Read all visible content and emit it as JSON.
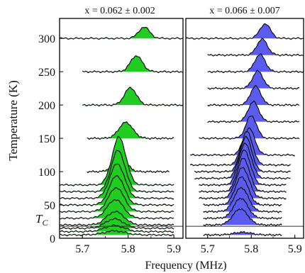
{
  "chart_data": [
    {
      "type": "area",
      "title": "x = 0.062 ± 0.002",
      "xlabel": "Frequency (MHz)",
      "ylabel": "Temperature (K)",
      "xlim": [
        5.65,
        5.92
      ],
      "ylim": [
        0,
        330
      ],
      "xticks": [
        "5.7",
        "5.8",
        "5.9"
      ],
      "yticks": [
        "0",
        "50",
        "100",
        "150",
        "200",
        "250",
        "300"
      ],
      "tc_label": "T",
      "tc_sub": "C",
      "tc_value": 18,
      "fill_color": "#22cc22",
      "traces": [
        {
          "temperature": 300,
          "xstart": 5.65,
          "xend": 5.92,
          "center": 5.835,
          "width": 0.012,
          "amplitude": 17
        },
        {
          "temperature": 250,
          "xstart": 5.7,
          "xend": 5.92,
          "center": 5.818,
          "width": 0.013,
          "amplitude": 24
        },
        {
          "temperature": 200,
          "xstart": 5.7,
          "xend": 5.92,
          "center": 5.805,
          "width": 0.013,
          "amplitude": 26
        },
        {
          "temperature": 150,
          "xstart": 5.71,
          "xend": 5.9,
          "center": 5.795,
          "width": 0.015,
          "amplitude": 24
        },
        {
          "temperature": 100,
          "xstart": 5.71,
          "xend": 5.89,
          "center": 5.782,
          "width": 0.014,
          "amplitude": 25
        },
        {
          "temperature": 80,
          "xstart": 5.65,
          "xend": 5.9,
          "center": 5.78,
          "width": 0.015,
          "amplitude": 72
        },
        {
          "temperature": 70,
          "xstart": 5.65,
          "xend": 5.9,
          "center": 5.778,
          "width": 0.015,
          "amplitude": 62
        },
        {
          "temperature": 60,
          "xstart": 5.65,
          "xend": 5.9,
          "center": 5.776,
          "width": 0.016,
          "amplitude": 52
        },
        {
          "temperature": 50,
          "xstart": 5.65,
          "xend": 5.9,
          "center": 5.775,
          "width": 0.016,
          "amplitude": 44
        },
        {
          "temperature": 40,
          "xstart": 5.65,
          "xend": 5.9,
          "center": 5.774,
          "width": 0.017,
          "amplitude": 36
        },
        {
          "temperature": 30,
          "xstart": 5.65,
          "xend": 5.9,
          "center": 5.772,
          "width": 0.018,
          "amplitude": 28
        },
        {
          "temperature": 20,
          "xstart": 5.65,
          "xend": 5.9,
          "center": 5.772,
          "width": 0.019,
          "amplitude": 20
        },
        {
          "temperature": 15,
          "xstart": 5.65,
          "xend": 5.9,
          "center": 5.77,
          "width": 0.02,
          "amplitude": 14
        },
        {
          "temperature": 10,
          "xstart": 5.65,
          "xend": 5.9,
          "center": 5.77,
          "width": 0.022,
          "amplitude": 9
        },
        {
          "temperature": 5,
          "xstart": 5.65,
          "xend": 5.9,
          "center": 5.77,
          "width": 0.024,
          "amplitude": 6
        }
      ]
    },
    {
      "type": "area",
      "title": "x = 0.066 ± 0.007",
      "xlabel": "Frequency (MHz)",
      "ylabel": "",
      "xlim": [
        5.65,
        5.92
      ],
      "ylim": [
        0,
        330
      ],
      "xticks": [
        "5.7",
        "5.8",
        "5.9"
      ],
      "yticks": [],
      "tc_value": 18,
      "fill_color": "#5b5bf0",
      "traces": [
        {
          "temperature": 300,
          "xstart": 5.65,
          "xend": 5.92,
          "center": 5.832,
          "width": 0.012,
          "amplitude": 22
        },
        {
          "temperature": 275,
          "xstart": 5.7,
          "xend": 5.92,
          "center": 5.825,
          "width": 0.012,
          "amplitude": 24
        },
        {
          "temperature": 250,
          "xstart": 5.7,
          "xend": 5.92,
          "center": 5.82,
          "width": 0.012,
          "amplitude": 26
        },
        {
          "temperature": 225,
          "xstart": 5.7,
          "xend": 5.91,
          "center": 5.815,
          "width": 0.012,
          "amplitude": 26
        },
        {
          "temperature": 200,
          "xstart": 5.7,
          "xend": 5.91,
          "center": 5.81,
          "width": 0.012,
          "amplitude": 28
        },
        {
          "temperature": 175,
          "xstart": 5.7,
          "xend": 5.91,
          "center": 5.805,
          "width": 0.012,
          "amplitude": 30
        },
        {
          "temperature": 150,
          "xstart": 5.68,
          "xend": 5.91,
          "center": 5.8,
          "width": 0.012,
          "amplitude": 34
        },
        {
          "temperature": 125,
          "xstart": 5.66,
          "xend": 5.9,
          "center": 5.795,
          "width": 0.013,
          "amplitude": 40
        },
        {
          "temperature": 110,
          "xstart": 5.66,
          "xend": 5.89,
          "center": 5.79,
          "width": 0.013,
          "amplitude": 50
        },
        {
          "temperature": 100,
          "xstart": 5.67,
          "xend": 5.89,
          "center": 5.788,
          "width": 0.013,
          "amplitude": 52
        },
        {
          "temperature": 90,
          "xstart": 5.67,
          "xend": 5.89,
          "center": 5.786,
          "width": 0.014,
          "amplitude": 52
        },
        {
          "temperature": 80,
          "xstart": 5.68,
          "xend": 5.88,
          "center": 5.784,
          "width": 0.014,
          "amplitude": 52
        },
        {
          "temperature": 70,
          "xstart": 5.68,
          "xend": 5.88,
          "center": 5.782,
          "width": 0.014,
          "amplitude": 50
        },
        {
          "temperature": 60,
          "xstart": 5.68,
          "xend": 5.88,
          "center": 5.78,
          "width": 0.015,
          "amplitude": 46
        },
        {
          "temperature": 50,
          "xstart": 5.69,
          "xend": 5.87,
          "center": 5.778,
          "width": 0.015,
          "amplitude": 42
        },
        {
          "temperature": 40,
          "xstart": 5.69,
          "xend": 5.87,
          "center": 5.777,
          "width": 0.016,
          "amplitude": 36
        },
        {
          "temperature": 30,
          "xstart": 5.69,
          "xend": 5.87,
          "center": 5.776,
          "width": 0.016,
          "amplitude": 30
        },
        {
          "temperature": 20,
          "xstart": 5.69,
          "xend": 5.87,
          "center": 5.775,
          "width": 0.017,
          "amplitude": 24
        },
        {
          "temperature": 5,
          "xstart": 5.69,
          "xend": 5.87,
          "center": 5.78,
          "width": 0.02,
          "amplitude": 4
        }
      ]
    }
  ]
}
